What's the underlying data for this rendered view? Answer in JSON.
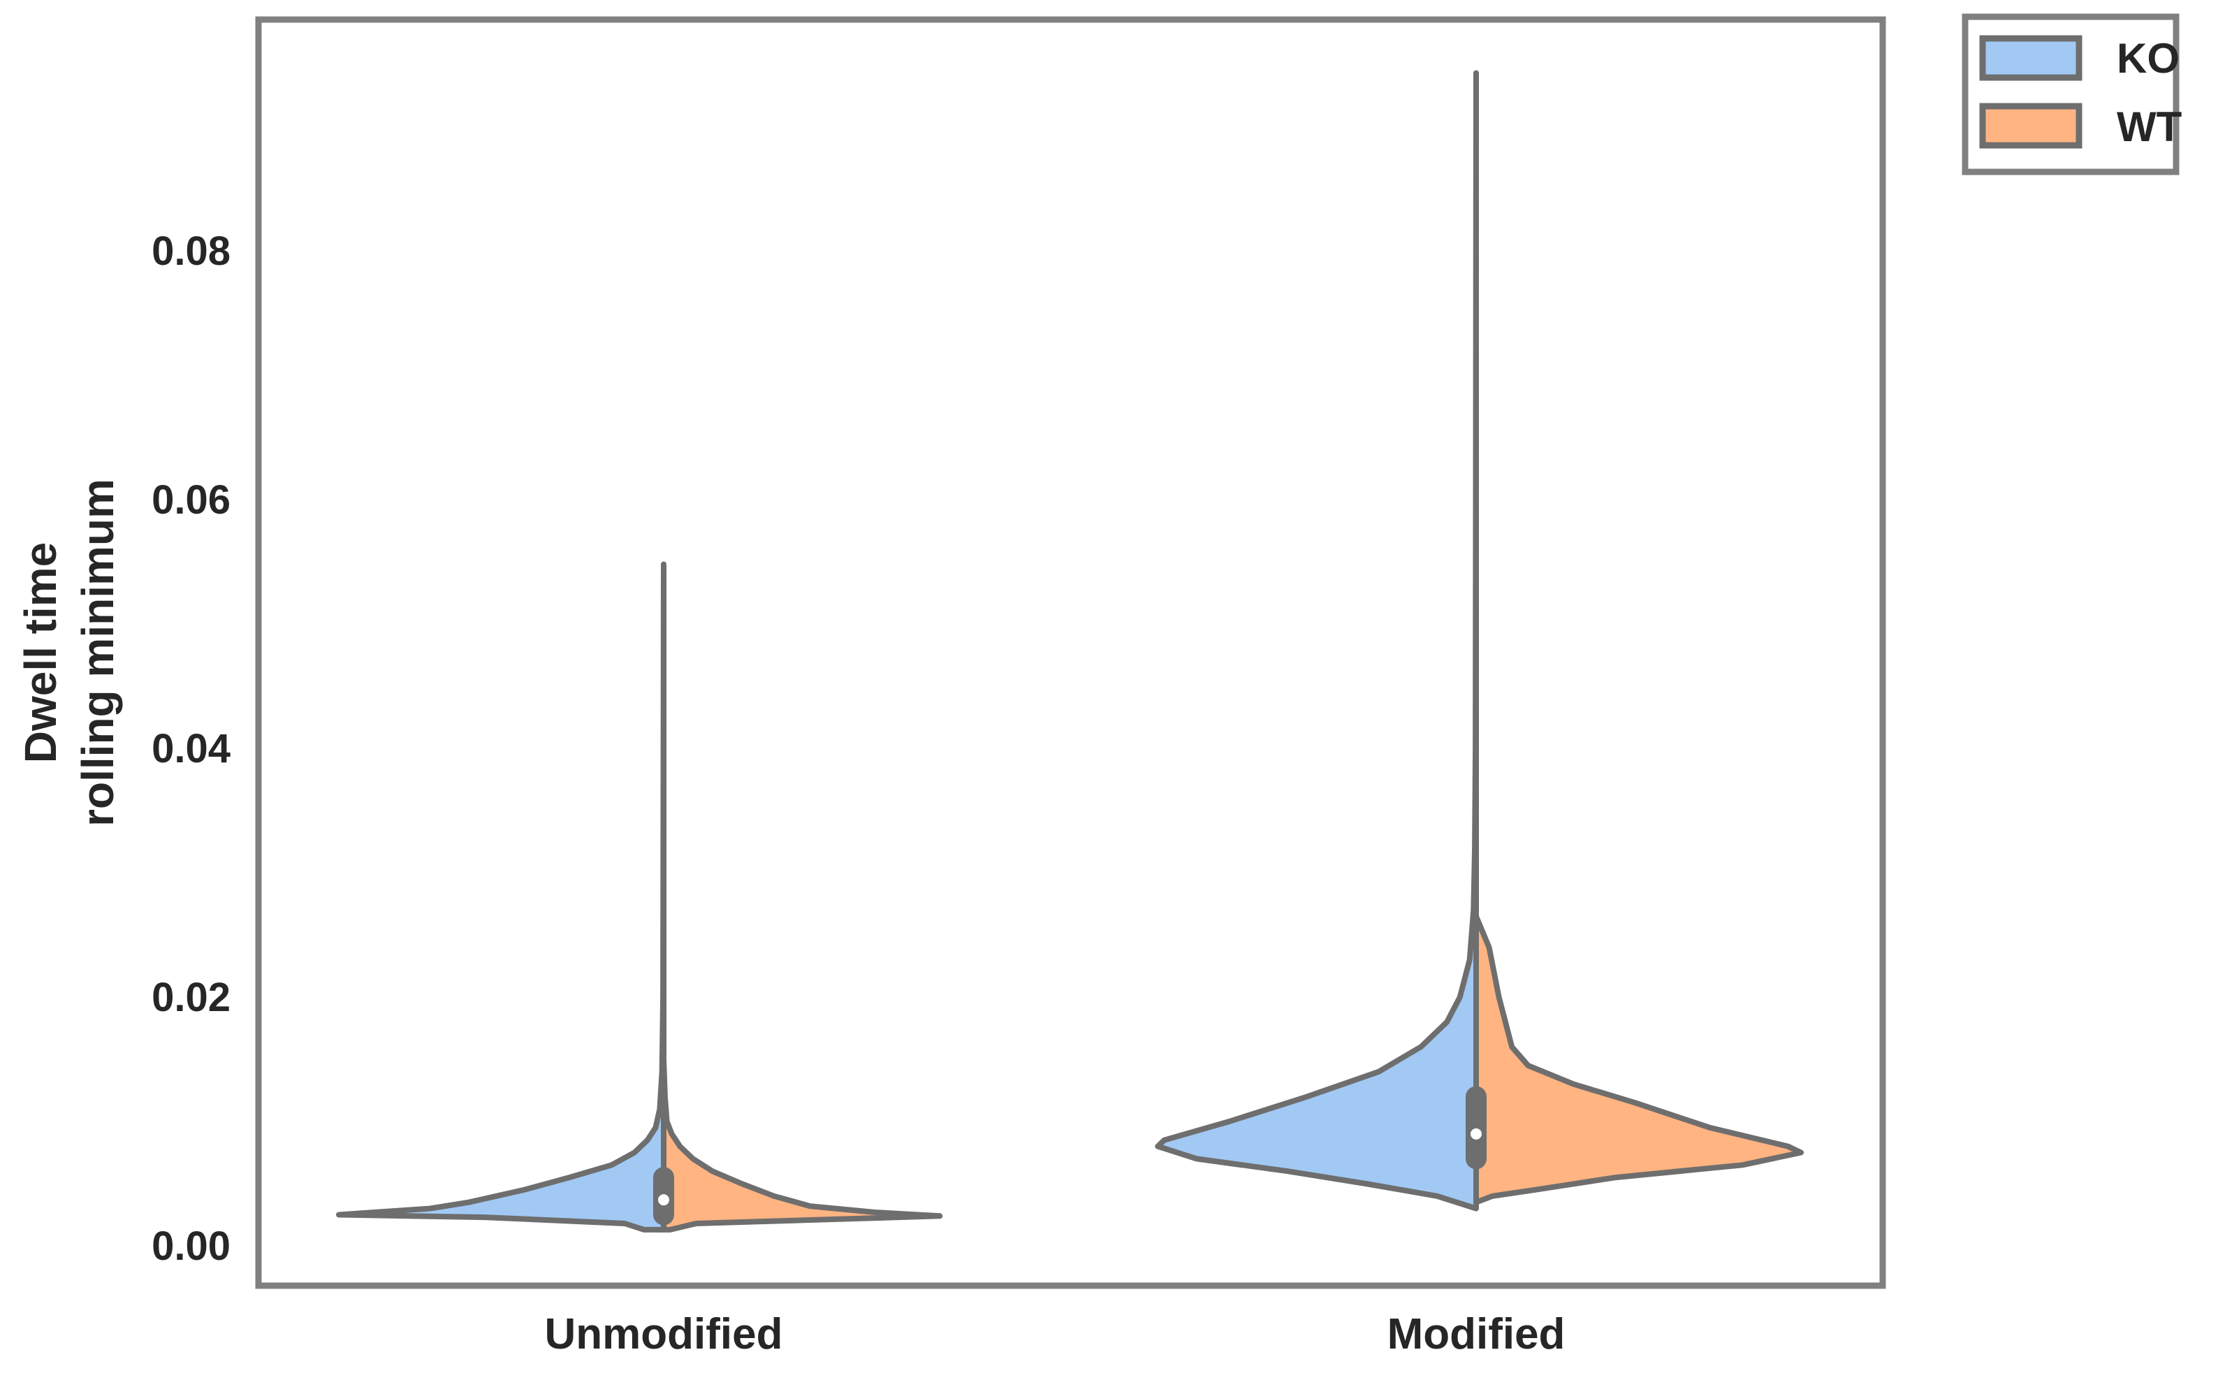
{
  "chart_data": {
    "type": "violin",
    "split": true,
    "categories": [
      "Unmodified",
      "Modified"
    ],
    "ylabel_lines": [
      "Dwell time",
      "rolling minimum"
    ],
    "ylim": [
      -0.0032,
      0.0986
    ],
    "yticks": [
      0.0,
      0.02,
      0.04,
      0.06,
      0.08
    ],
    "ytick_labels": [
      "0.00",
      "0.02",
      "0.04",
      "0.06",
      "0.08"
    ],
    "grid": false,
    "legend_placement": "outside-top-right",
    "colors": {
      "KO": "#a1c9f4",
      "WT": "#ffb482",
      "line": "#6e6e6e",
      "frame": "#808080"
    },
    "series": [
      {
        "name": "KO",
        "color": "#a1c9f4"
      },
      {
        "name": "WT",
        "color": "#ffb482"
      }
    ],
    "violins": [
      {
        "category": "Unmodified",
        "KO_profile": [
          [
            0.0013,
            0.06
          ],
          [
            0.0018,
            0.12
          ],
          [
            0.0023,
            0.55
          ],
          [
            0.0025,
            1.0
          ],
          [
            0.003,
            0.72
          ],
          [
            0.0035,
            0.6
          ],
          [
            0.0045,
            0.43
          ],
          [
            0.0055,
            0.29
          ],
          [
            0.0065,
            0.16
          ],
          [
            0.0075,
            0.09
          ],
          [
            0.0085,
            0.05
          ],
          [
            0.0095,
            0.025
          ],
          [
            0.011,
            0.012
          ],
          [
            0.014,
            0.005
          ],
          [
            0.02,
            0.002
          ],
          [
            0.0548,
            0.0
          ]
        ],
        "WT_profile": [
          [
            0.0013,
            0.02
          ],
          [
            0.0018,
            0.1
          ],
          [
            0.0024,
            0.85
          ],
          [
            0.0027,
            0.65
          ],
          [
            0.0032,
            0.45
          ],
          [
            0.004,
            0.34
          ],
          [
            0.005,
            0.24
          ],
          [
            0.006,
            0.15
          ],
          [
            0.007,
            0.09
          ],
          [
            0.008,
            0.05
          ],
          [
            0.009,
            0.025
          ],
          [
            0.01,
            0.01
          ],
          [
            0.012,
            0.004
          ],
          [
            0.015,
            0.0
          ]
        ],
        "box": {
          "q1": 0.0025,
          "median": 0.0037,
          "q3": 0.0055
        }
      },
      {
        "category": "Modified",
        "KO_profile": [
          [
            0.003,
            0.0
          ],
          [
            0.004,
            0.12
          ],
          [
            0.005,
            0.34
          ],
          [
            0.006,
            0.58
          ],
          [
            0.007,
            0.86
          ],
          [
            0.008,
            0.98
          ],
          [
            0.0085,
            0.96
          ],
          [
            0.01,
            0.76
          ],
          [
            0.012,
            0.52
          ],
          [
            0.014,
            0.3
          ],
          [
            0.016,
            0.17
          ],
          [
            0.018,
            0.09
          ],
          [
            0.02,
            0.05
          ],
          [
            0.023,
            0.02
          ],
          [
            0.027,
            0.008
          ],
          [
            0.032,
            0.004
          ],
          [
            0.04,
            0.002
          ],
          [
            0.06,
            0.001
          ],
          [
            0.0943,
            0.0
          ]
        ],
        "WT_profile": [
          [
            0.0035,
            0.0
          ],
          [
            0.004,
            0.05
          ],
          [
            0.0045,
            0.18
          ],
          [
            0.0055,
            0.43
          ],
          [
            0.0065,
            0.82
          ],
          [
            0.0075,
            1.0
          ],
          [
            0.008,
            0.96
          ],
          [
            0.0095,
            0.72
          ],
          [
            0.0115,
            0.49
          ],
          [
            0.013,
            0.3
          ],
          [
            0.0145,
            0.16
          ],
          [
            0.016,
            0.11
          ],
          [
            0.02,
            0.07
          ],
          [
            0.024,
            0.04
          ],
          [
            0.0265,
            0.0
          ]
        ],
        "box": {
          "q1": 0.007,
          "median": 0.009,
          "q3": 0.012
        }
      }
    ]
  }
}
